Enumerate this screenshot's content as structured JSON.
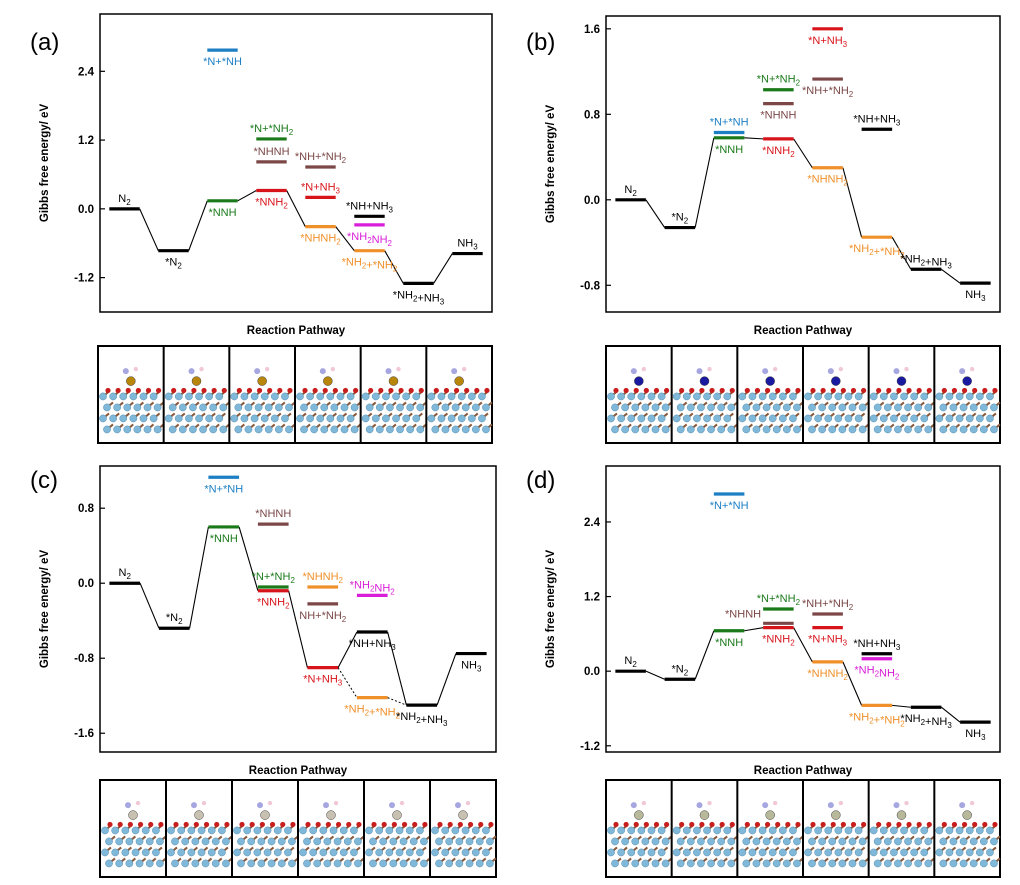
{
  "figure": {
    "colors": {
      "black": "#000000",
      "green": "#1a7a1a",
      "blue": "#1c7fc4",
      "brown": "#7b4747",
      "red": "#d8141b",
      "orange": "#f0902a",
      "magenta": "#d81ed8",
      "dark_brown": "#6b4a4a",
      "slab_blue": "#7fb8d8",
      "slab_brown": "#8a5a3c",
      "slab_red": "#c81e1e"
    }
  },
  "chart_data": [
    {
      "panel": "(a)",
      "type": "energy_profile",
      "xlabel": "Reaction Pathway",
      "ylabel": "Gibbs free energy/ eV",
      "ylim": [
        -1.8,
        3.4
      ],
      "yticks": [
        "2.4",
        "1.2",
        "0.0",
        "-1.2"
      ],
      "ytick_values": [
        2.4,
        1.2,
        0.0,
        -1.2
      ],
      "step_count": 7,
      "levels": [
        {
          "label": "N_2",
          "step": 0,
          "energy": 0.0,
          "color": "black",
          "label_pos": "above"
        },
        {
          "label": "*N_2",
          "step": 1,
          "energy": -0.73,
          "color": "black",
          "label_pos": "below"
        },
        {
          "label": "*NNH",
          "step": 2,
          "energy": 0.14,
          "color": "green",
          "label_pos": "below"
        },
        {
          "label": "*N+*NH",
          "step": 2,
          "energy": 2.77,
          "color": "blue",
          "label_pos": "below"
        },
        {
          "label": "*NNH_2",
          "step": 3,
          "energy": 0.32,
          "color": "red",
          "label_pos": "below"
        },
        {
          "label": "*NHNH",
          "step": 3,
          "energy": 0.82,
          "color": "brown",
          "label_pos": "above"
        },
        {
          "label": "*N+*NH_2",
          "step": 3,
          "energy": 1.22,
          "color": "green",
          "label_pos": "above"
        },
        {
          "label": "*NHNH_2",
          "step": 4,
          "energy": -0.31,
          "color": "orange",
          "label_pos": "below"
        },
        {
          "label": "*N+NH_3",
          "step": 4,
          "energy": 0.2,
          "color": "red",
          "label_pos": "above"
        },
        {
          "label": "*NH+*NH_2",
          "step": 4,
          "energy": 0.73,
          "color": "brown",
          "label_pos": "above"
        },
        {
          "label": "*NH_2+*NH_2",
          "step": 5,
          "energy": -0.73,
          "color": "orange",
          "label_pos": "below"
        },
        {
          "label": "*NH_2NH_2",
          "step": 5,
          "energy": -0.28,
          "color": "magenta",
          "label_pos": "below"
        },
        {
          "label": "*NH+NH_3",
          "step": 5,
          "energy": -0.13,
          "color": "black",
          "label_pos": "above"
        },
        {
          "label": "*NH_2+NH_3",
          "step": 6,
          "energy": -1.3,
          "color": "black",
          "label_pos": "below"
        },
        {
          "label": "NH_3",
          "step": 7,
          "energy": -0.78,
          "color": "black",
          "label_pos": "above"
        }
      ],
      "connections": [
        [
          0,
          1
        ],
        [
          1,
          2
        ],
        [
          2,
          4
        ],
        [
          4,
          7
        ],
        [
          7,
          10
        ],
        [
          10,
          13
        ],
        [
          13,
          14
        ]
      ]
    },
    {
      "panel": "(b)",
      "type": "energy_profile",
      "xlabel": "Reaction Pathway",
      "ylabel": "Gibbs free energy/ eV",
      "ylim": [
        -1.05,
        1.72
      ],
      "yticks": [
        "1.6",
        "0.8",
        "0.0",
        "-0.8"
      ],
      "ytick_values": [
        1.6,
        0.8,
        0.0,
        -0.8
      ],
      "step_count": 7,
      "levels": [
        {
          "label": "N_2",
          "step": 0,
          "energy": 0.0,
          "color": "black",
          "label_pos": "above"
        },
        {
          "label": "*N_2",
          "step": 1,
          "energy": -0.26,
          "color": "black",
          "label_pos": "above"
        },
        {
          "label": "*NNH",
          "step": 2,
          "energy": 0.58,
          "color": "green",
          "label_pos": "below"
        },
        {
          "label": "*N+*NH",
          "step": 2,
          "energy": 0.63,
          "color": "blue",
          "label_pos": "above"
        },
        {
          "label": "*NNH_2",
          "step": 3,
          "energy": 0.57,
          "color": "red",
          "label_pos": "below"
        },
        {
          "label": "*NHNH",
          "step": 3,
          "energy": 0.9,
          "color": "brown",
          "label_pos": "below"
        },
        {
          "label": "*N+*NH_2",
          "step": 3,
          "energy": 1.03,
          "color": "green",
          "label_pos": "above"
        },
        {
          "label": "*NHNH_2",
          "step": 4,
          "energy": 0.3,
          "color": "orange",
          "label_pos": "below"
        },
        {
          "label": "*NH+*NH_2",
          "step": 4,
          "energy": 1.13,
          "color": "brown",
          "label_pos": "below"
        },
        {
          "label": "*N+NH_3",
          "step": 4,
          "energy": 1.6,
          "color": "red",
          "label_pos": "below"
        },
        {
          "label": "*NH_2+*NH_2",
          "step": 5,
          "energy": -0.35,
          "color": "orange",
          "label_pos": "below"
        },
        {
          "label": "*NH+NH_3",
          "step": 5,
          "energy": 0.66,
          "color": "black",
          "label_pos": "above"
        },
        {
          "label": "*NH_2+NH_3",
          "step": 6,
          "energy": -0.65,
          "color": "black",
          "label_pos": "above"
        },
        {
          "label": "NH_3",
          "step": 7,
          "energy": -0.78,
          "color": "black",
          "label_pos": "below"
        }
      ],
      "connections": [
        [
          0,
          1
        ],
        [
          1,
          2
        ],
        [
          2,
          4
        ],
        [
          4,
          7
        ],
        [
          7,
          10
        ],
        [
          10,
          12
        ],
        [
          12,
          13
        ]
      ]
    },
    {
      "panel": "(c)",
      "type": "energy_profile",
      "xlabel": "Reaction Pathway",
      "ylabel": "Gibbs free energy/ eV",
      "ylim": [
        -1.8,
        1.25
      ],
      "yticks": [
        "0.8",
        "0.0",
        "-0.8",
        "-1.6"
      ],
      "ytick_values": [
        0.8,
        0.0,
        -0.8,
        -1.6
      ],
      "step_count": 7,
      "levels": [
        {
          "label": "N_2",
          "step": 0,
          "energy": 0.0,
          "color": "black",
          "label_pos": "above"
        },
        {
          "label": "*N_2",
          "step": 1,
          "energy": -0.48,
          "color": "black",
          "label_pos": "above"
        },
        {
          "label": "*NNH",
          "step": 2,
          "energy": 0.6,
          "color": "green",
          "label_pos": "below"
        },
        {
          "label": "*N+*NH",
          "step": 2,
          "energy": 1.13,
          "color": "blue",
          "label_pos": "below"
        },
        {
          "label": "*NNH_2",
          "step": 3,
          "energy": -0.08,
          "color": "red",
          "label_pos": "below"
        },
        {
          "label": "*N+*NH_2",
          "step": 3,
          "energy": -0.04,
          "color": "green",
          "label_pos": "above"
        },
        {
          "label": "*NHNH",
          "step": 3,
          "energy": 0.63,
          "color": "brown",
          "label_pos": "above"
        },
        {
          "label": "*N+NH_3",
          "step": 4,
          "energy": -0.9,
          "color": "red",
          "label_pos": "below"
        },
        {
          "label": "NH+*NH_2",
          "step": 4,
          "energy": -0.22,
          "color": "brown",
          "label_pos": "below"
        },
        {
          "label": "*NHNH_2",
          "step": 4,
          "energy": -0.04,
          "color": "orange",
          "label_pos": "above"
        },
        {
          "label": "*NH_2+*NH_2",
          "step": 5,
          "energy": -1.22,
          "color": "orange",
          "label_pos": "below"
        },
        {
          "label": "*NH+NH_3",
          "step": 5,
          "energy": -0.52,
          "color": "black",
          "label_pos": "below"
        },
        {
          "label": "*NH_2NH_2",
          "step": 5,
          "energy": -0.13,
          "color": "magenta",
          "label_pos": "above"
        },
        {
          "label": "*NH_2+NH_3",
          "step": 6,
          "energy": -1.3,
          "color": "black",
          "label_pos": "below"
        },
        {
          "label": "NH_3",
          "step": 7,
          "energy": -0.75,
          "color": "black",
          "label_pos": "below"
        }
      ],
      "connections": [
        [
          0,
          1
        ],
        [
          1,
          2
        ],
        [
          2,
          4
        ],
        [
          4,
          7
        ],
        [
          7,
          11
        ],
        [
          11,
          13
        ],
        [
          13,
          14
        ]
      ],
      "dotted_connections": [
        [
          7,
          10
        ],
        [
          10,
          13
        ]
      ]
    },
    {
      "panel": "(d)",
      "type": "energy_profile",
      "xlabel": "Reaction Pathway",
      "ylabel": "Gibbs free energy/ eV",
      "ylim": [
        -1.3,
        3.3
      ],
      "yticks": [
        "2.4",
        "1.2",
        "0.0",
        "-1.2"
      ],
      "ytick_values": [
        2.4,
        1.2,
        0.0,
        -1.2
      ],
      "step_count": 7,
      "levels": [
        {
          "label": "N_2",
          "step": 0,
          "energy": 0.0,
          "color": "black",
          "label_pos": "above"
        },
        {
          "label": "*N_2",
          "step": 1,
          "energy": -0.13,
          "color": "black",
          "label_pos": "above"
        },
        {
          "label": "*NNH",
          "step": 2,
          "energy": 0.65,
          "color": "green",
          "label_pos": "below"
        },
        {
          "label": "*N+*NH",
          "step": 2,
          "energy": 2.85,
          "color": "blue",
          "label_pos": "below"
        },
        {
          "label": "*NNH_2",
          "step": 3,
          "energy": 0.7,
          "color": "red",
          "label_pos": "below"
        },
        {
          "label": "*NHNH",
          "step": 3,
          "energy": 0.77,
          "color": "brown",
          "label_pos": "above-left"
        },
        {
          "label": "*N+*NH_2",
          "step": 3,
          "energy": 1.0,
          "color": "green",
          "label_pos": "above"
        },
        {
          "label": "*NHNH_2",
          "step": 4,
          "energy": 0.15,
          "color": "orange",
          "label_pos": "below"
        },
        {
          "label": "*N+NH_3",
          "step": 4,
          "energy": 0.7,
          "color": "red",
          "label_pos": "below"
        },
        {
          "label": "*NH+*NH_2",
          "step": 4,
          "energy": 0.92,
          "color": "brown",
          "label_pos": "above"
        },
        {
          "label": "*NH_2+*NH_2",
          "step": 5,
          "energy": -0.55,
          "color": "orange",
          "label_pos": "below"
        },
        {
          "label": "*NH_2NH_2",
          "step": 5,
          "energy": 0.2,
          "color": "magenta",
          "label_pos": "below"
        },
        {
          "label": "*NH+NH_3",
          "step": 5,
          "energy": 0.28,
          "color": "black",
          "label_pos": "above"
        },
        {
          "label": "*NH_2+NH_3",
          "step": 6,
          "energy": -0.58,
          "color": "black",
          "label_pos": "below"
        },
        {
          "label": "NH_3",
          "step": 7,
          "energy": -0.82,
          "color": "black",
          "label_pos": "below"
        }
      ],
      "connections": [
        [
          0,
          1
        ],
        [
          1,
          2
        ],
        [
          2,
          4
        ],
        [
          4,
          7
        ],
        [
          7,
          10
        ],
        [
          10,
          13
        ],
        [
          13,
          14
        ]
      ]
    }
  ]
}
